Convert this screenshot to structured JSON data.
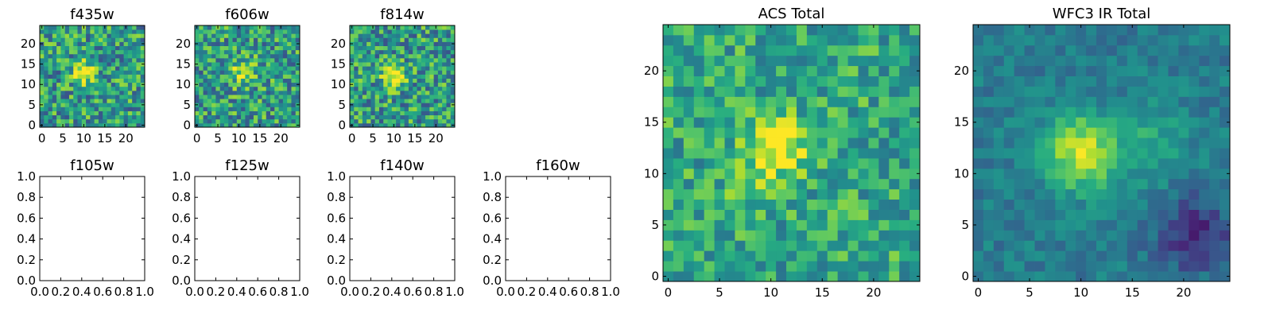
{
  "figure": {
    "description_type": "astronomical image cutouts",
    "colormap": [
      "#440154",
      "#472a7a",
      "#3b518b",
      "#2c718e",
      "#21908d",
      "#27ad81",
      "#5cc863",
      "#aadc32",
      "#fde725"
    ]
  },
  "chart_data": [
    {
      "type": "heatmap",
      "title": "f435w",
      "grid_size": 25,
      "xlim": [
        -0.5,
        24.5
      ],
      "ylim": [
        -0.5,
        24.5
      ],
      "xticks": [
        "0",
        "5",
        "10",
        "15",
        "20"
      ],
      "yticks": [
        "0",
        "5",
        "10",
        "15",
        "20"
      ],
      "source": {
        "cx": 10,
        "cy": 13,
        "amp": 0.5,
        "sigma": 1.8,
        "base": 0.55,
        "noise": 0.3,
        "seed": 11
      },
      "extra": []
    },
    {
      "type": "heatmap",
      "title": "f606w",
      "grid_size": 25,
      "xlim": [
        -0.5,
        24.5
      ],
      "ylim": [
        -0.5,
        24.5
      ],
      "xticks": [
        "0",
        "5",
        "10",
        "15",
        "20"
      ],
      "yticks": [
        "0",
        "5",
        "10",
        "15",
        "20"
      ],
      "source": {
        "cx": 11,
        "cy": 13,
        "amp": 0.35,
        "sigma": 2.2,
        "base": 0.55,
        "noise": 0.3,
        "seed": 23
      },
      "extra": []
    },
    {
      "type": "heatmap",
      "title": "f814w",
      "grid_size": 25,
      "xlim": [
        -0.5,
        24.5
      ],
      "ylim": [
        -0.5,
        24.5
      ],
      "xticks": [
        "0",
        "5",
        "10",
        "15",
        "20"
      ],
      "yticks": [
        "0",
        "5",
        "10",
        "15",
        "20"
      ],
      "source": {
        "cx": 10,
        "cy": 12,
        "amp": 0.55,
        "sigma": 1.8,
        "base": 0.55,
        "noise": 0.3,
        "seed": 37
      },
      "extra": []
    },
    {
      "type": "empty",
      "title": "f105w",
      "xlim": [
        0,
        1
      ],
      "ylim": [
        0,
        1
      ],
      "xticks": [
        "0.0",
        "0.2",
        "0.4",
        "0.6",
        "0.8",
        "1.0"
      ],
      "yticks": [
        "0.0",
        "0.2",
        "0.4",
        "0.6",
        "0.8",
        "1.0"
      ]
    },
    {
      "type": "empty",
      "title": "f125w",
      "xlim": [
        0,
        1
      ],
      "ylim": [
        0,
        1
      ],
      "xticks": [
        "0.0",
        "0.2",
        "0.4",
        "0.6",
        "0.8",
        "1.0"
      ],
      "yticks": [
        "0.0",
        "0.2",
        "0.4",
        "0.6",
        "0.8",
        "1.0"
      ]
    },
    {
      "type": "empty",
      "title": "f140w",
      "xlim": [
        0,
        1
      ],
      "ylim": [
        0,
        1
      ],
      "xticks": [
        "0.0",
        "0.2",
        "0.4",
        "0.6",
        "0.8",
        "1.0"
      ],
      "yticks": [
        "0.0",
        "0.2",
        "0.4",
        "0.6",
        "0.8",
        "1.0"
      ]
    },
    {
      "type": "empty",
      "title": "f160w",
      "xlim": [
        0,
        1
      ],
      "ylim": [
        0,
        1
      ],
      "xticks": [
        "0.0",
        "0.2",
        "0.4",
        "0.6",
        "0.8",
        "1.0"
      ],
      "yticks": [
        "0.0",
        "0.2",
        "0.4",
        "0.6",
        "0.8",
        "1.0"
      ]
    },
    {
      "type": "heatmap",
      "title": "ACS Total",
      "grid_size": 25,
      "xlim": [
        -0.5,
        24.5
      ],
      "ylim": [
        -0.5,
        24.5
      ],
      "xticks": [
        "0",
        "5",
        "10",
        "15",
        "20"
      ],
      "yticks": [
        "0",
        "5",
        "10",
        "15",
        "20"
      ],
      "source": {
        "cx": 10.5,
        "cy": 12.5,
        "amp": 0.45,
        "sigma": 2.0,
        "base": 0.6,
        "noise": 0.22,
        "seed": 53
      },
      "extra": [
        {
          "cx": 8,
          "cy": 8.5,
          "amp": 0.2,
          "sigma": 1.2
        }
      ]
    },
    {
      "type": "heatmap",
      "title": "WFC3 IR Total",
      "grid_size": 25,
      "xlim": [
        -0.5,
        24.5
      ],
      "ylim": [
        -0.5,
        24.5
      ],
      "xticks": [
        "0",
        "5",
        "10",
        "15",
        "20"
      ],
      "yticks": [
        "0",
        "5",
        "10",
        "15",
        "20"
      ],
      "source": {
        "cx": 10,
        "cy": 12,
        "amp": 0.5,
        "sigma": 2.6,
        "base": 0.42,
        "noise": 0.1,
        "seed": 71
      },
      "extra": [
        {
          "cx": 17,
          "cy": 13,
          "amp": 0.18,
          "sigma": 2.5
        },
        {
          "cx": 21,
          "cy": 4,
          "amp": -0.3,
          "sigma": 2.5
        }
      ]
    }
  ]
}
